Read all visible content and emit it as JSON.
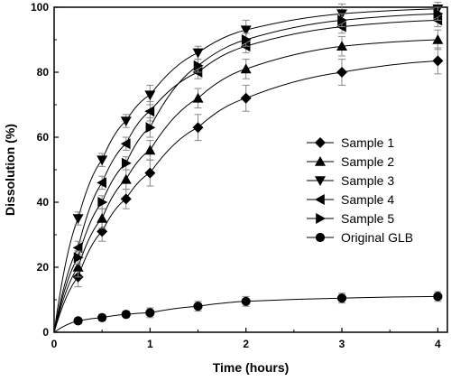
{
  "chart_data": {
    "type": "line",
    "xlabel": "Time (hours)",
    "ylabel": "Dissolution (%)",
    "xlim": [
      0,
      4.1
    ],
    "ylim": [
      0,
      100
    ],
    "xticks": [
      0,
      1,
      2,
      3,
      4
    ],
    "yticks": [
      0,
      20,
      40,
      60,
      80,
      100
    ],
    "x": [
      0,
      0.25,
      0.5,
      0.75,
      1,
      1.5,
      2,
      3,
      4
    ],
    "grid": false,
    "legend_position": "right",
    "series": [
      {
        "name": "Sample 1",
        "marker": "diamond",
        "values": [
          0,
          17,
          31,
          41,
          49,
          63,
          72,
          80,
          83.5
        ],
        "errors": [
          0,
          3,
          3,
          3,
          4,
          4,
          4,
          4,
          4
        ]
      },
      {
        "name": "Sample 2",
        "marker": "triangle-up",
        "values": [
          0,
          20,
          35,
          47,
          56,
          72,
          81,
          88,
          90
        ],
        "errors": [
          0,
          3,
          3,
          3,
          3,
          3,
          3,
          3,
          3
        ]
      },
      {
        "name": "Sample 3",
        "marker": "triangle-down",
        "values": [
          0,
          35,
          53,
          65,
          73,
          86,
          93,
          98,
          99.5
        ],
        "errors": [
          0,
          2,
          2,
          2,
          3,
          2,
          3,
          3,
          2
        ]
      },
      {
        "name": "Sample 4",
        "marker": "triangle-left",
        "values": [
          0,
          26,
          46,
          58,
          68,
          80,
          88,
          94,
          96
        ],
        "errors": [
          0,
          2,
          2,
          2,
          3,
          2,
          2,
          2,
          2
        ]
      },
      {
        "name": "Sample 5",
        "marker": "triangle-right",
        "values": [
          0,
          23,
          40,
          52,
          63,
          82,
          90,
          96,
          98
        ],
        "errors": [
          0,
          2,
          2,
          2,
          3,
          2,
          2,
          2,
          2
        ]
      },
      {
        "name": "Original GLB",
        "marker": "circle",
        "values": [
          0,
          3.5,
          4.5,
          5.5,
          6,
          8,
          9.5,
          10.5,
          11
        ],
        "errors": [
          0,
          0.8,
          1,
          1,
          1.5,
          1.5,
          1.5,
          1.5,
          1.5
        ]
      }
    ]
  }
}
